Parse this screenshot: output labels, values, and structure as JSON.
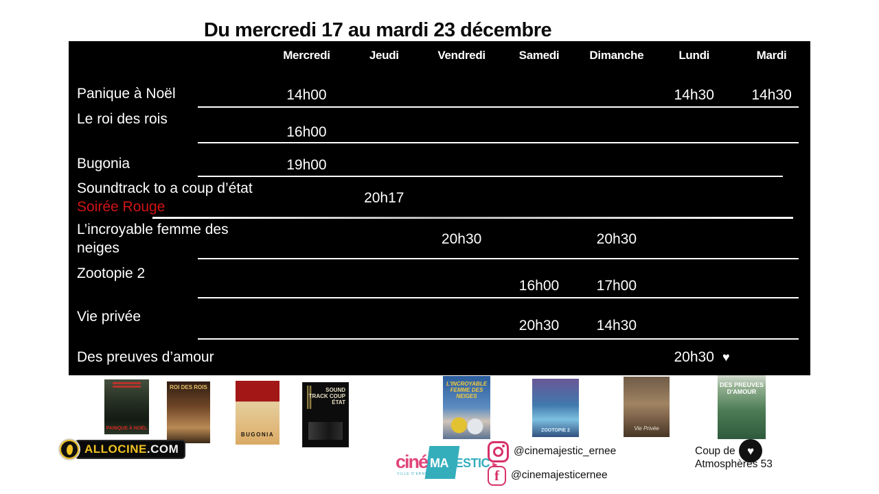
{
  "page": {
    "title": "Du mercredi 17 au mardi 23 décembre"
  },
  "schedule": {
    "days": [
      "Mercredi",
      "Jeudi",
      "Vendredi",
      "Samedi",
      "Dimanche",
      "Lundi",
      "Mardi"
    ],
    "heart_symbol": "♥",
    "rows": [
      {
        "title": "Panique à Noël",
        "times": [
          "14h00",
          "",
          "",
          "",
          "",
          "14h30",
          "14h30"
        ]
      },
      {
        "title": "Le roi des rois",
        "times": [
          "16h00",
          "",
          "",
          "",
          "",
          "",
          ""
        ]
      },
      {
        "title": "Bugonia",
        "times": [
          "19h00",
          "",
          "",
          "",
          "",
          "",
          ""
        ]
      },
      {
        "title": "Soundtrack to a coup d’état",
        "subtitle": "Soirée Rouge",
        "subtitle_color": "#d21414",
        "times": [
          "",
          "20h17",
          "",
          "",
          "",
          "",
          ""
        ]
      },
      {
        "title": "L’incroyable femme des neiges",
        "times": [
          "",
          "",
          "20h30",
          "",
          "20h30",
          "",
          ""
        ]
      },
      {
        "title": "Zootopie 2",
        "times": [
          "",
          "",
          "",
          "16h00",
          "17h00",
          "",
          ""
        ]
      },
      {
        "title": "Vie privée",
        "times": [
          "",
          "",
          "",
          "20h30",
          "14h30",
          "",
          ""
        ]
      },
      {
        "title": "Des preuves d’amour",
        "times": [
          "",
          "",
          "",
          "",
          "",
          "20h30",
          ""
        ],
        "heart": true
      }
    ]
  },
  "footer": {
    "posters": [
      {
        "id": "panique-a-noel",
        "label": "PANIQUE À NOËL"
      },
      {
        "id": "le-roi-des-rois",
        "label": "ROI DES ROIS"
      },
      {
        "id": "bugonia",
        "label": "BUGONIA"
      },
      {
        "id": "soundtrack-coup-detat",
        "label": "SOUND TRACK COUP ÉTAT"
      },
      {
        "id": "incroyable-femme-des-neiges",
        "label": "L'INCROYABLE FEMME DES NEIGES"
      },
      {
        "id": "zootopie-2",
        "label": "ZOOTOPIE 2"
      },
      {
        "id": "vie-privee",
        "label": "Vie Privée"
      },
      {
        "id": "des-preuves-damour",
        "label": "DES PREUVES D'AMOUR"
      }
    ],
    "allocine": {
      "main": "ALLOCINE",
      "suffix": ".COM"
    },
    "cinema_logo": {
      "part1": "ciné",
      "part2_a": "MA",
      "part2_b": "JESTIC",
      "arrow": "▸",
      "tagline": "VILLE D'ERNÉE"
    },
    "social": [
      {
        "network": "instagram",
        "handle": "@cinemajestic_ernee"
      },
      {
        "network": "facebook",
        "handle": "@cinemajesticernee"
      }
    ],
    "award": {
      "line1": "Coup de",
      "line2": "Atmosphères 53",
      "heart_symbol": "♥"
    }
  },
  "colors": {
    "table_bg": "#000000",
    "accent_red": "#d21414",
    "brand_pink": "#d63069",
    "brand_teal": "#35aebc",
    "allocine_yellow": "#f0c223"
  }
}
